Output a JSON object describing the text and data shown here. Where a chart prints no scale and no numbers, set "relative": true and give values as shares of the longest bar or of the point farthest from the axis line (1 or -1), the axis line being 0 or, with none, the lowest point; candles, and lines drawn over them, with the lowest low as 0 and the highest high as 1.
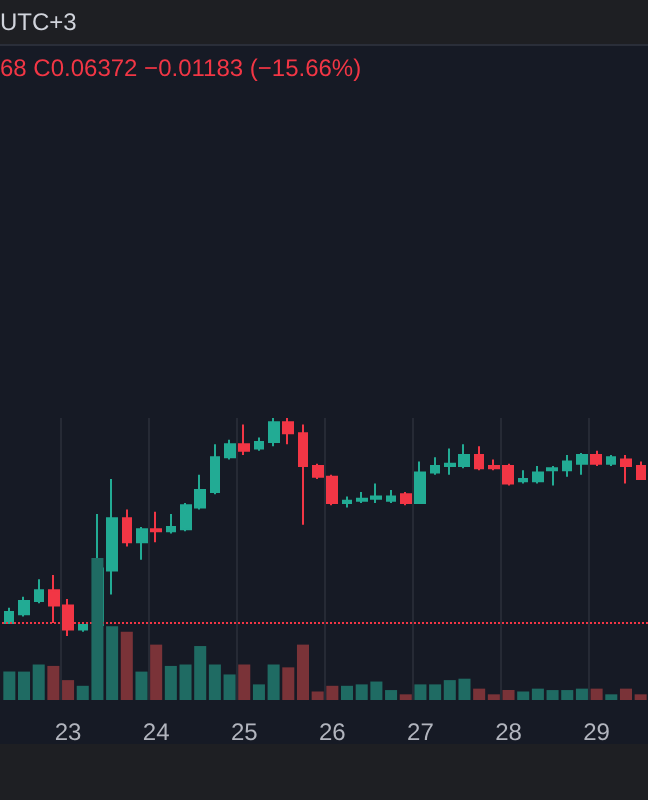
{
  "chart_data": [
    {
      "type": "candlestick",
      "relative": true,
      "tick_labels": false,
      "grid": "x",
      "annotations": [
        "UTC+3",
        "68 C0.06372 −0.01183 (−15.66%)"
      ],
      "categories": [
        null,
        null,
        null,
        null,
        "23",
        null,
        null,
        null,
        null,
        null,
        "24",
        null,
        null,
        null,
        null,
        null,
        "25",
        null,
        null,
        null,
        null,
        null,
        "26",
        null,
        null,
        null,
        null,
        null,
        "27",
        null,
        null,
        null,
        null,
        null,
        "28",
        null,
        null,
        null,
        null,
        null,
        "29",
        null,
        null,
        null
      ],
      "colors": [
        "#22ab94",
        "#22ab94",
        "#22ab94",
        "#f23645",
        "#f23645",
        "#22ab94",
        "#22ab94",
        "#22ab94",
        "#f23645",
        "#22ab94",
        "#f23645",
        "#22ab94",
        "#22ab94",
        "#22ab94",
        "#22ab94",
        "#22ab94",
        "#f23645",
        "#22ab94",
        "#22ab94",
        "#f23645",
        "#f23645",
        "#f23645",
        "#f23645",
        "#22ab94",
        "#22ab94",
        "#22ab94",
        "#22ab94",
        "#f23645",
        "#22ab94",
        "#22ab94",
        "#22ab94",
        "#22ab94",
        "#f23645",
        "#f23645",
        "#f23645",
        "#22ab94",
        "#22ab94",
        "#22ab94",
        "#22ab94",
        "#22ab94",
        "#f23645",
        "#22ab94",
        "#f23645",
        "#f23645"
      ],
      "ohlc": [
        [
          0.06,
          0.13,
          0.06,
          0.11
        ],
        [
          0.1,
          0.18,
          0.09,
          0.16
        ],
        [
          0.16,
          0.26,
          0.15,
          0.21
        ],
        [
          0.21,
          0.28,
          0.06,
          0.14
        ],
        [
          0.14,
          0.17,
          0,
          0.03
        ],
        [
          0.03,
          0.06,
          0.02,
          0.05
        ],
        [
          0.05,
          0.56,
          0.03,
          0.31
        ],
        [
          0.3,
          0.72,
          0.19,
          0.54
        ],
        [
          0.54,
          0.58,
          0.41,
          0.43
        ],
        [
          0.43,
          0.5,
          0.35,
          0.49
        ],
        [
          0.49,
          0.57,
          0.43,
          0.48
        ],
        [
          0.48,
          0.56,
          0.47,
          0.5
        ],
        [
          0.49,
          0.61,
          0.48,
          0.6
        ],
        [
          0.59,
          0.74,
          0.58,
          0.67
        ],
        [
          0.66,
          0.88,
          0.65,
          0.82
        ],
        [
          0.82,
          0.9,
          0.81,
          0.88
        ],
        [
          0.88,
          0.97,
          0.83,
          0.85
        ],
        [
          0.86,
          0.91,
          0.85,
          0.89
        ],
        [
          0.89,
          1,
          0.87,
          0.98
        ],
        [
          0.98,
          1,
          0.88,
          0.93
        ],
        [
          0.93,
          0.97,
          0.51,
          0.78
        ],
        [
          0.78,
          0.79,
          0.72,
          0.73
        ],
        [
          0.73,
          0.74,
          0.6,
          0.61
        ],
        [
          0.61,
          0.64,
          0.59,
          0.62
        ],
        [
          0.62,
          0.66,
          0.61,
          0.63
        ],
        [
          0.63,
          0.7,
          0.61,
          0.64
        ],
        [
          0.62,
          0.67,
          0.61,
          0.64
        ],
        [
          0.65,
          0.66,
          0.6,
          0.61
        ],
        [
          0.61,
          0.8,
          0.61,
          0.75
        ],
        [
          0.75,
          0.82,
          0.74,
          0.78
        ],
        [
          0.78,
          0.86,
          0.74,
          0.79
        ],
        [
          0.78,
          0.88,
          0.77,
          0.83
        ],
        [
          0.83,
          0.87,
          0.76,
          0.77
        ],
        [
          0.78,
          0.81,
          0.76,
          0.77
        ],
        [
          0.78,
          0.79,
          0.69,
          0.7
        ],
        [
          0.71,
          0.76,
          0.7,
          0.72
        ],
        [
          0.71,
          0.78,
          0.7,
          0.75
        ],
        [
          0.76,
          0.78,
          0.69,
          0.77
        ],
        [
          0.76,
          0.83,
          0.73,
          0.8
        ],
        [
          0.79,
          0.84,
          0.74,
          0.83
        ],
        [
          0.83,
          0.85,
          0.78,
          0.79
        ],
        [
          0.79,
          0.83,
          0.78,
          0.82
        ],
        [
          0.81,
          0.83,
          0.7,
          0.78
        ],
        [
          0.78,
          0.8,
          0.72,
          0.72
        ]
      ],
      "ref_lines": [
        {
          "axis": "y",
          "value": 0.06,
          "label": null,
          "color": "#f23645",
          "line_style": "dotted"
        }
      ]
    },
    {
      "type": "bar",
      "relative": true,
      "tick_labels": "x",
      "grid": "x",
      "categories": [
        null,
        null,
        null,
        null,
        "23",
        null,
        null,
        null,
        null,
        null,
        "24",
        null,
        null,
        null,
        null,
        null,
        "25",
        null,
        null,
        null,
        null,
        null,
        "26",
        null,
        null,
        null,
        null,
        null,
        "27",
        null,
        null,
        null,
        null,
        null,
        "28",
        null,
        null,
        null,
        null,
        null,
        "29",
        null,
        null,
        null
      ],
      "values": [
        0.2,
        0.2,
        0.25,
        0.24,
        0.14,
        0.1,
        1,
        0.52,
        0.48,
        0.2,
        0.39,
        0.24,
        0.25,
        0.38,
        0.25,
        0.18,
        0.25,
        0.11,
        0.25,
        0.23,
        0.39,
        0.06,
        0.1,
        0.1,
        0.11,
        0.13,
        0.07,
        0.04,
        0.11,
        0.11,
        0.14,
        0.15,
        0.08,
        0.04,
        0.07,
        0.06,
        0.08,
        0.07,
        0.07,
        0.08,
        0.08,
        0.04,
        0.08,
        0.04
      ],
      "colors": [
        "#1f6b63",
        "#1f6b63",
        "#1f6b63",
        "#7a3338",
        "#7a3338",
        "#1f6b63",
        "#1f6b63",
        "#1f6b63",
        "#7a3338",
        "#1f6b63",
        "#7a3338",
        "#1f6b63",
        "#1f6b63",
        "#1f6b63",
        "#1f6b63",
        "#1f6b63",
        "#7a3338",
        "#1f6b63",
        "#1f6b63",
        "#7a3338",
        "#7a3338",
        "#7a3338",
        "#7a3338",
        "#1f6b63",
        "#1f6b63",
        "#1f6b63",
        "#1f6b63",
        "#7a3338",
        "#1f6b63",
        "#1f6b63",
        "#1f6b63",
        "#1f6b63",
        "#7a3338",
        "#7a3338",
        "#7a3338",
        "#1f6b63",
        "#1f6b63",
        "#1f6b63",
        "#1f6b63",
        "#1f6b63",
        "#7a3338",
        "#1f6b63",
        "#7a3338",
        "#7a3338"
      ]
    }
  ]
}
